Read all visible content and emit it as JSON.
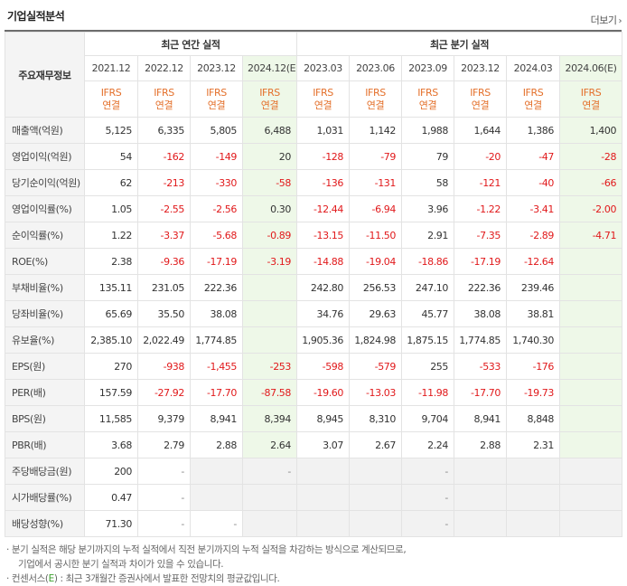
{
  "section_title": "기업실적분석",
  "more_label": "더보기",
  "corner_label": "주요재무정보",
  "groups": {
    "annual": "최근 연간 실적",
    "quarterly": "최근 분기 실적"
  },
  "periods": [
    "2021.12",
    "2022.12",
    "2023.12",
    "2024.12(E)",
    "2023.03",
    "2023.06",
    "2023.09",
    "2023.12",
    "2024.03",
    "2024.06(E)"
  ],
  "ifrs": [
    "IFRS",
    "IFRS",
    "IFRS",
    "IFRS",
    "IFRS",
    "IFRS",
    "IFRS",
    "IFRS",
    "IFRS",
    "IFRS"
  ],
  "basis": [
    "연결",
    "연결",
    "연결",
    "연결",
    "연결",
    "연결",
    "연결",
    "연결",
    "연결",
    "연결"
  ],
  "rows": [
    {
      "label": "매출액(억원)",
      "values": [
        "5,125",
        "6,335",
        "5,805",
        "6,488",
        "1,031",
        "1,142",
        "1,988",
        "1,644",
        "1,386",
        "1,400"
      ]
    },
    {
      "label": "영업이익(억원)",
      "values": [
        "54",
        "-162",
        "-149",
        "20",
        "-128",
        "-79",
        "79",
        "-20",
        "-47",
        "-28"
      ]
    },
    {
      "label": "당기순이익(억원)",
      "values": [
        "62",
        "-213",
        "-330",
        "-58",
        "-136",
        "-131",
        "58",
        "-121",
        "-40",
        "-66"
      ]
    },
    {
      "label": "영업이익률(%)",
      "values": [
        "1.05",
        "-2.55",
        "-2.56",
        "0.30",
        "-12.44",
        "-6.94",
        "3.96",
        "-1.22",
        "-3.41",
        "-2.00"
      ]
    },
    {
      "label": "순이익률(%)",
      "values": [
        "1.22",
        "-3.37",
        "-5.68",
        "-0.89",
        "-13.15",
        "-11.50",
        "2.91",
        "-7.35",
        "-2.89",
        "-4.71"
      ]
    },
    {
      "label": "ROE(%)",
      "values": [
        "2.38",
        "-9.36",
        "-17.19",
        "-3.19",
        "-14.88",
        "-19.04",
        "-18.86",
        "-17.19",
        "-12.64",
        ""
      ]
    },
    {
      "label": "부채비율(%)",
      "values": [
        "135.11",
        "231.05",
        "222.36",
        "",
        "242.80",
        "256.53",
        "247.10",
        "222.36",
        "239.46",
        ""
      ]
    },
    {
      "label": "당좌비율(%)",
      "values": [
        "65.69",
        "35.50",
        "38.08",
        "",
        "34.76",
        "29.63",
        "45.77",
        "38.08",
        "38.81",
        ""
      ]
    },
    {
      "label": "유보율(%)",
      "values": [
        "2,385.10",
        "2,022.49",
        "1,774.85",
        "",
        "1,905.36",
        "1,824.98",
        "1,875.15",
        "1,774.85",
        "1,740.30",
        ""
      ]
    },
    {
      "label": "EPS(원)",
      "values": [
        "270",
        "-938",
        "-1,455",
        "-253",
        "-598",
        "-579",
        "255",
        "-533",
        "-176",
        ""
      ]
    },
    {
      "label": "PER(배)",
      "values": [
        "157.59",
        "-27.92",
        "-17.70",
        "-87.58",
        "-19.60",
        "-13.03",
        "-11.98",
        "-17.70",
        "-19.73",
        ""
      ]
    },
    {
      "label": "BPS(원)",
      "values": [
        "11,585",
        "9,379",
        "8,941",
        "8,394",
        "8,945",
        "8,310",
        "9,704",
        "8,941",
        "8,848",
        ""
      ]
    },
    {
      "label": "PBR(배)",
      "values": [
        "3.68",
        "2.79",
        "2.88",
        "2.64",
        "3.07",
        "2.67",
        "2.24",
        "2.88",
        "2.31",
        ""
      ]
    },
    {
      "label": "주당배당금(원)",
      "values": [
        "200",
        "-",
        "",
        "-",
        "",
        "",
        "-",
        "",
        "",
        ""
      ]
    },
    {
      "label": "시가배당률(%)",
      "values": [
        "0.47",
        "-",
        "",
        "",
        "",
        "",
        "-",
        "",
        "",
        ""
      ]
    },
    {
      "label": "배당성향(%)",
      "values": [
        "71.30",
        "-",
        "-",
        "",
        "",
        "",
        "-",
        "",
        "",
        ""
      ]
    }
  ],
  "notes": {
    "line1": "분기 실적은 해당 분기까지의 누적 실적에서 직전 분기까지의 누적 실적을 차감하는 방식으로 계산되므로,",
    "line2": "기업에서 공시한 분기 실적과 차이가 있을 수 있습니다.",
    "line3_prefix": "컨센서스(",
    "line3_e": "E",
    "line3_suffix": ") : 최근 3개월간 증권사에서 발표한 전망치의 평균값입니다."
  },
  "colors": {
    "negative": "#e1191b",
    "ifrs": "#e4702b",
    "estimate_bg": "#eef8e8",
    "consensus_e": "#3a9f2b"
  }
}
